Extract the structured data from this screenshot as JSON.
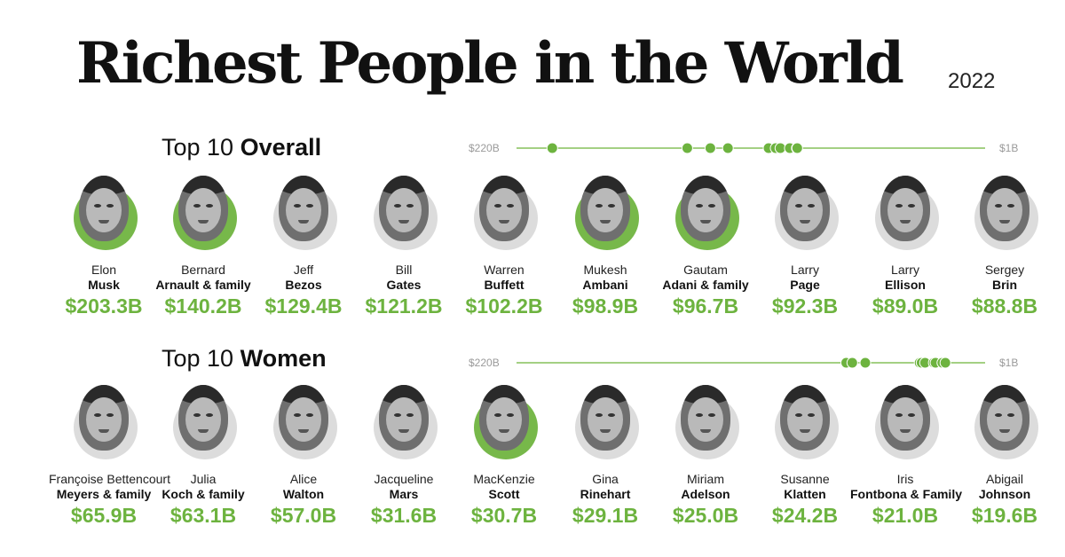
{
  "title": "Richest People in the World",
  "year": "2022",
  "colors": {
    "accent": "#6db33f",
    "photo_ring_gray": "#dcdcdc",
    "photo_ring_green": "#77b84a",
    "scale_line": "#86c15a"
  },
  "sections": {
    "overall": {
      "heading_prefix": "Top 10 ",
      "heading_bold": "Overall"
    },
    "women": {
      "heading_prefix": "Top 10 ",
      "heading_bold": "Women"
    }
  },
  "scale": {
    "max_label": "$220B",
    "min_label": "$1B",
    "max_value": 220,
    "min_value": 1
  },
  "chart_data": [
    {
      "type": "scatter",
      "title": "Top 10 Overall",
      "x_range": [
        220,
        1
      ],
      "people": [
        {
          "first": "Elon",
          "last": "Musk",
          "value": 203.3,
          "value_label": "$203.3B",
          "ring": "green"
        },
        {
          "first": "Bernard",
          "last": "Arnault & family",
          "value": 140.2,
          "value_label": "$140.2B",
          "ring": "green"
        },
        {
          "first": "Jeff",
          "last": "Bezos",
          "value": 129.4,
          "value_label": "$129.4B",
          "ring": "gray"
        },
        {
          "first": "Bill",
          "last": "Gates",
          "value": 121.2,
          "value_label": "$121.2B",
          "ring": "gray"
        },
        {
          "first": "Warren",
          "last": "Buffett",
          "value": 102.2,
          "value_label": "$102.2B",
          "ring": "gray"
        },
        {
          "first": "Mukesh",
          "last": "Ambani",
          "value": 98.9,
          "value_label": "$98.9B",
          "ring": "green"
        },
        {
          "first": "Gautam",
          "last": "Adani & family",
          "value": 96.7,
          "value_label": "$96.7B",
          "ring": "green"
        },
        {
          "first": "Larry",
          "last": "Page",
          "value": 92.3,
          "value_label": "$92.3B",
          "ring": "gray"
        },
        {
          "first": "Larry",
          "last": "Ellison",
          "value": 89.0,
          "value_label": "$89.0B",
          "ring": "gray"
        },
        {
          "first": "Sergey",
          "last": "Brin",
          "value": 88.8,
          "value_label": "$88.8B",
          "ring": "gray"
        }
      ]
    },
    {
      "type": "scatter",
      "title": "Top 10 Women",
      "x_range": [
        220,
        1
      ],
      "people": [
        {
          "first": "Françoise Bettencourt",
          "last": "Meyers & family",
          "value": 65.9,
          "value_label": "$65.9B",
          "ring": "gray"
        },
        {
          "first": "Julia",
          "last": "Koch & family",
          "value": 63.1,
          "value_label": "$63.1B",
          "ring": "gray"
        },
        {
          "first": "Alice",
          "last": "Walton",
          "value": 57.0,
          "value_label": "$57.0B",
          "ring": "gray"
        },
        {
          "first": "Jacqueline",
          "last": "Mars",
          "value": 31.6,
          "value_label": "$31.6B",
          "ring": "gray"
        },
        {
          "first": "MacKenzie",
          "last": "Scott",
          "value": 30.7,
          "value_label": "$30.7B",
          "ring": "green"
        },
        {
          "first": "Gina",
          "last": "Rinehart",
          "value": 29.1,
          "value_label": "$29.1B",
          "ring": "gray"
        },
        {
          "first": "Miriam",
          "last": "Adelson",
          "value": 25.0,
          "value_label": "$25.0B",
          "ring": "gray"
        },
        {
          "first": "Susanne",
          "last": "Klatten",
          "value": 24.2,
          "value_label": "$24.2B",
          "ring": "gray"
        },
        {
          "first": "Iris",
          "last": "Fontbona & Family",
          "value": 21.0,
          "value_label": "$21.0B",
          "ring": "gray"
        },
        {
          "first": "Abigail",
          "last": "Johnson",
          "value": 19.6,
          "value_label": "$19.6B",
          "ring": "gray"
        }
      ]
    }
  ]
}
